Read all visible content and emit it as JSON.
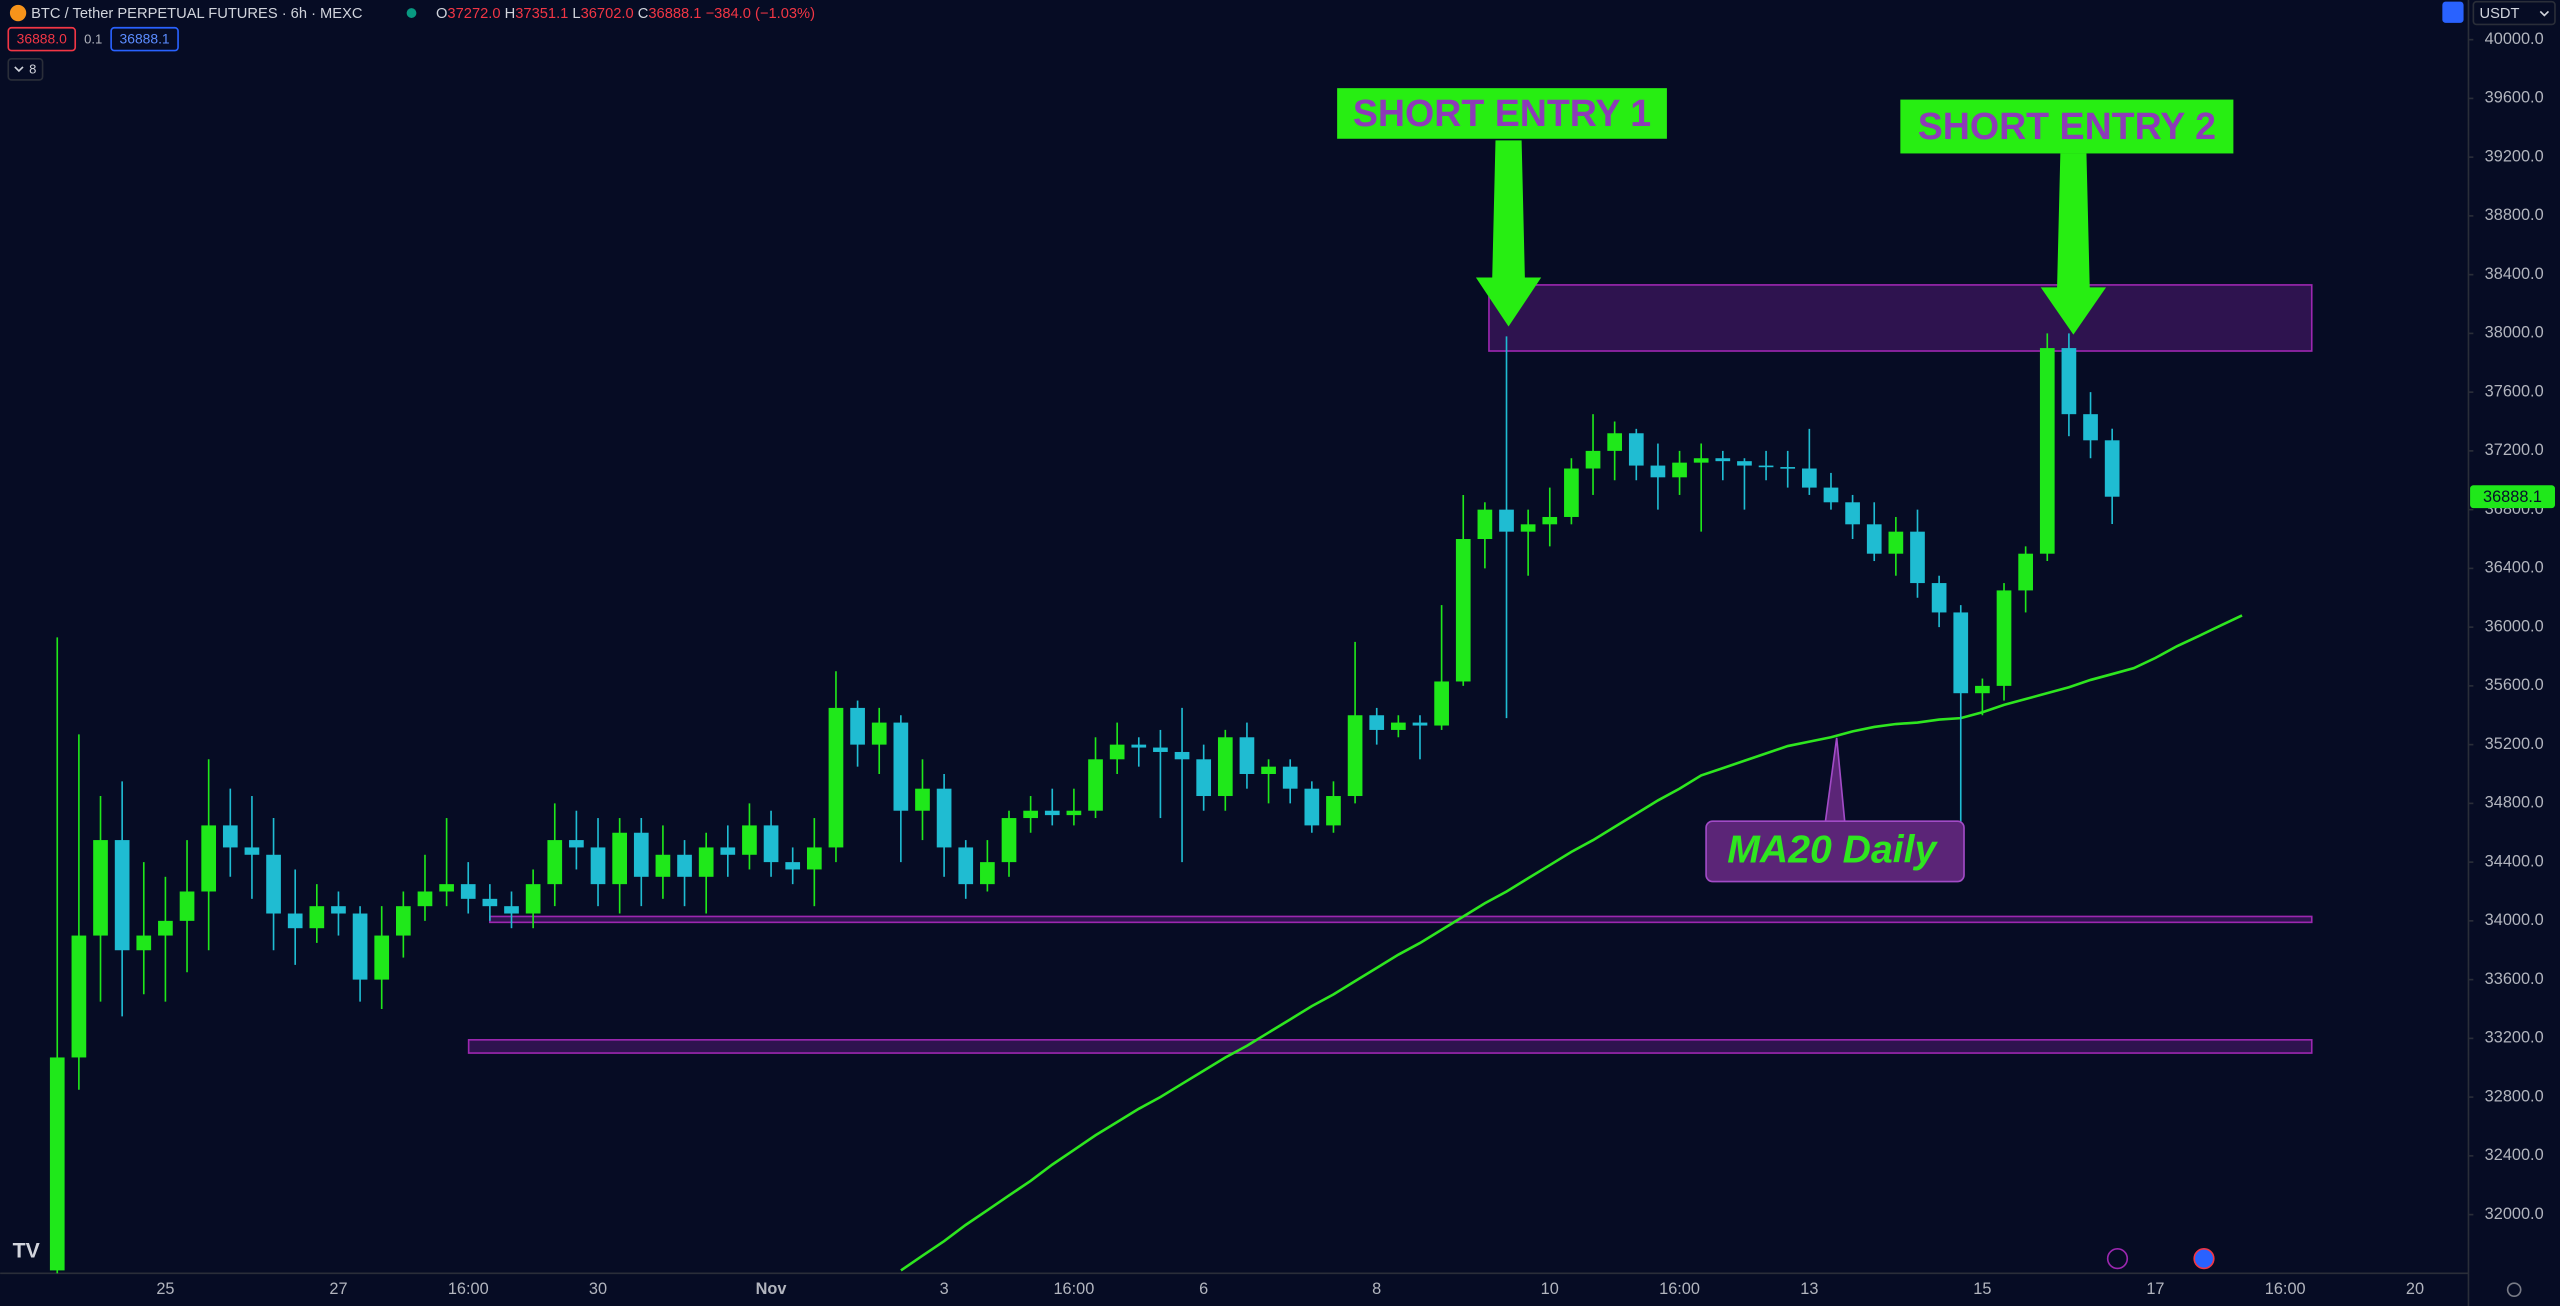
{
  "header": {
    "symbol": "BTC / Tether PERPETUAL FUTURES · 6h · MEXC",
    "ohlc": [
      {
        "key": "O",
        "value": "37272.0"
      },
      {
        "key": "H",
        "value": "37351.1"
      },
      {
        "key": "L",
        "value": "36702.0"
      },
      {
        "key": "C",
        "value": "36888.1"
      }
    ],
    "change": "−384.0 (−1.03%)",
    "sell": "36888.0",
    "spread": "0.1",
    "buy": "36888.1",
    "indicators": "8",
    "currency": "USDT",
    "price_badge": "36888.1"
  },
  "chart_data": {
    "type": "candlestick",
    "categories": [
      null,
      null,
      null,
      null,
      null,
      "25",
      null,
      null,
      null,
      null,
      null,
      null,
      null,
      "27",
      null,
      null,
      null,
      null,
      null,
      "16:00",
      null,
      null,
      null,
      null,
      null,
      "30",
      null,
      null,
      null,
      null,
      null,
      null,
      null,
      "Nov",
      null,
      null,
      null,
      null,
      null,
      null,
      null,
      "3",
      null,
      null,
      null,
      null,
      null,
      "16:00",
      null,
      null,
      null,
      null,
      null,
      "6",
      null,
      null,
      null,
      null,
      null,
      null,
      null,
      "8",
      null,
      null,
      null,
      null,
      null,
      null,
      null,
      "10",
      null,
      null,
      null,
      null,
      null,
      "16:00",
      null,
      null,
      null,
      null,
      null,
      "13",
      null,
      null,
      null,
      null,
      null,
      null,
      null,
      "15",
      null,
      null,
      null,
      null,
      null,
      null,
      null,
      "17",
      null,
      null,
      null,
      null,
      null,
      "16:00",
      null,
      null,
      null,
      null,
      null,
      "20",
      null,
      null
    ],
    "open": [
      31620,
      33070,
      33900,
      34550,
      33800,
      33900,
      34000,
      34200,
      34650,
      34500,
      34450,
      34050,
      33950,
      34100,
      34050,
      33600,
      33900,
      34100,
      34200,
      34250,
      34150,
      34100,
      34050,
      34250,
      34550,
      34500,
      34250,
      34600,
      34300,
      34450,
      34300,
      34500,
      34450,
      34650,
      34400,
      34350,
      34500,
      35450,
      35200,
      35350,
      34750,
      34900,
      34500,
      34250,
      34400,
      34700,
      34750,
      34720,
      34750,
      35100,
      35200,
      35180,
      35150,
      35100,
      34850,
      35250,
      35000,
      35050,
      34900,
      34650,
      34850,
      35400,
      35300,
      35350,
      35330,
      35630,
      36600,
      36800,
      36650,
      36700,
      36750,
      37080,
      37200,
      37320,
      37100,
      37020,
      37120,
      37150,
      37130,
      37100,
      37090,
      37080,
      36950,
      36850,
      36700,
      36500,
      36650,
      36300,
      36100,
      35550,
      35600,
      36250,
      36500,
      37900,
      37450,
      37272,
      null,
      null,
      null,
      null,
      null,
      null,
      null,
      null,
      null,
      null,
      null,
      null,
      null,
      null,
      null,
      null
    ],
    "high": [
      35930,
      35270,
      34850,
      34950,
      34400,
      34300,
      34550,
      35100,
      34900,
      34850,
      34700,
      34350,
      34250,
      34200,
      34100,
      34100,
      34200,
      34450,
      34700,
      34400,
      34250,
      34200,
      34350,
      34800,
      34750,
      34700,
      34700,
      34700,
      34650,
      34550,
      34600,
      34650,
      34800,
      34750,
      34500,
      34700,
      35700,
      35500,
      35450,
      35400,
      35100,
      35000,
      34550,
      34550,
      34750,
      34850,
      34900,
      34900,
      35250,
      35350,
      35250,
      35300,
      35450,
      35200,
      35300,
      35350,
      35100,
      35100,
      34950,
      34950,
      35900,
      35450,
      35400,
      35400,
      36150,
      36900,
      36850,
      37980,
      36800,
      36950,
      37150,
      37450,
      37400,
      37350,
      37250,
      37200,
      37250,
      37200,
      37150,
      37200,
      37200,
      37350,
      37050,
      36900,
      36850,
      36750,
      36800,
      36350,
      36150,
      35650,
      36300,
      36550,
      38000,
      38000,
      37600,
      37351,
      null,
      null,
      null,
      null,
      null,
      null,
      null,
      null,
      null,
      null,
      null,
      null,
      null,
      null,
      null,
      null
    ],
    "low": [
      31600,
      32850,
      33450,
      33350,
      33500,
      33450,
      33650,
      33800,
      34300,
      34150,
      33800,
      33700,
      33850,
      33900,
      33450,
      33400,
      33750,
      34000,
      34100,
      34050,
      34000,
      33950,
      33950,
      34100,
      34350,
      34100,
      34050,
      34100,
      34150,
      34100,
      34050,
      34300,
      34350,
      34300,
      34250,
      34100,
      34400,
      35050,
      35000,
      34400,
      34550,
      34300,
      34150,
      34200,
      34300,
      34600,
      34650,
      34650,
      34700,
      35000,
      35050,
      34700,
      34400,
      34750,
      34750,
      34900,
      34800,
      34800,
      34600,
      34600,
      34800,
      35200,
      35250,
      35100,
      35300,
      35600,
      36400,
      35380,
      36350,
      36550,
      36700,
      36900,
      37000,
      37000,
      36800,
      36900,
      36650,
      37000,
      36800,
      37000,
      36950,
      36900,
      36800,
      36600,
      36450,
      36350,
      36200,
      36000,
      34550,
      35400,
      35500,
      36100,
      36450,
      37300,
      37150,
      36702,
      null,
      null,
      null,
      null,
      null,
      null,
      null,
      null,
      null,
      null,
      null,
      null,
      null,
      null,
      null,
      null
    ],
    "close": [
      33070,
      33900,
      34550,
      33800,
      33900,
      34000,
      34200,
      34650,
      34500,
      34450,
      34050,
      33950,
      34100,
      34050,
      33600,
      33900,
      34100,
      34200,
      34250,
      34150,
      34100,
      34050,
      34250,
      34550,
      34500,
      34250,
      34600,
      34300,
      34450,
      34300,
      34500,
      34450,
      34650,
      34400,
      34350,
      34500,
      35450,
      35200,
      35350,
      34750,
      34900,
      34500,
      34250,
      34400,
      34700,
      34750,
      34720,
      34750,
      35100,
      35200,
      35180,
      35150,
      35100,
      34850,
      35250,
      35000,
      35050,
      34900,
      34650,
      34850,
      35400,
      35300,
      35350,
      35330,
      35630,
      36600,
      36800,
      36650,
      36700,
      36750,
      37080,
      37200,
      37320,
      37100,
      37020,
      37120,
      37150,
      37130,
      37100,
      37090,
      37080,
      36950,
      36850,
      36700,
      36500,
      36650,
      36300,
      36100,
      35550,
      35600,
      36250,
      36500,
      37900,
      37450,
      37272,
      36888,
      null,
      null,
      null,
      null,
      null,
      null,
      null,
      null,
      null,
      null,
      null,
      null,
      null,
      null,
      null,
      null
    ],
    "up_color": "#1fe81a",
    "down_color": "#1fbcd2",
    "ma": {
      "color": "#2ee61f",
      "values": [
        null,
        null,
        null,
        null,
        null,
        null,
        null,
        null,
        null,
        null,
        null,
        null,
        null,
        null,
        null,
        null,
        null,
        null,
        null,
        null,
        null,
        null,
        null,
        null,
        null,
        null,
        null,
        null,
        null,
        null,
        null,
        null,
        null,
        null,
        null,
        null,
        null,
        null,
        null,
        31620,
        31720,
        31820,
        31930,
        32030,
        32130,
        32230,
        32340,
        32440,
        32540,
        32630,
        32720,
        32800,
        32890,
        32980,
        33070,
        33150,
        33240,
        33330,
        33420,
        33500,
        33590,
        33680,
        33770,
        33850,
        33940,
        34030,
        34120,
        34200,
        34290,
        34380,
        34470,
        34550,
        34640,
        34730,
        34820,
        34900,
        34990,
        35040,
        35090,
        35140,
        35190,
        35220,
        35250,
        35290,
        35320,
        35340,
        35350,
        35370,
        35380,
        35420,
        35470,
        35510,
        35550,
        35590,
        35640,
        35680,
        35720,
        35790,
        35870,
        35940,
        36010,
        36080,
        null,
        null,
        null,
        null,
        null,
        null,
        null,
        null,
        null,
        null
      ]
    },
    "zones": [
      {
        "top": 38330,
        "bottom": 37880
      },
      {
        "top": 34030,
        "bottom": 33990
      },
      {
        "top": 33190,
        "bottom": 33100
      }
    ],
    "annotations": [
      "SHORT ENTRY 1",
      "SHORT ENTRY 2",
      "MA20 Daily"
    ],
    "ylim": [
      31600,
      40270
    ],
    "yticks": [
      {
        "value": 32000,
        "label": "32000.0"
      },
      {
        "value": 32400,
        "label": "32400.0"
      },
      {
        "value": 32800,
        "label": "32800.0"
      },
      {
        "value": 33200,
        "label": "33200.0"
      },
      {
        "value": 33600,
        "label": "33600.0"
      },
      {
        "value": 34000,
        "label": "34000.0"
      },
      {
        "value": 34400,
        "label": "34400.0"
      },
      {
        "value": 34800,
        "label": "34800.0"
      },
      {
        "value": 35200,
        "label": "35200.0"
      },
      {
        "value": 35600,
        "label": "35600.0"
      },
      {
        "value": 36000,
        "label": "36000.0"
      },
      {
        "value": 36400,
        "label": "36400.0"
      },
      {
        "value": 36800,
        "label": "36800.0"
      },
      {
        "value": 37200,
        "label": "37200.0"
      },
      {
        "value": 37600,
        "label": "37600.0"
      },
      {
        "value": 38000,
        "label": "38000.0"
      },
      {
        "value": 38400,
        "label": "38400.0"
      },
      {
        "value": 38800,
        "label": "38800.0"
      },
      {
        "value": 39200,
        "label": "39200.0"
      },
      {
        "value": 39600,
        "label": "39600.0"
      },
      {
        "value": 40000,
        "label": "40000.0"
      }
    ]
  }
}
